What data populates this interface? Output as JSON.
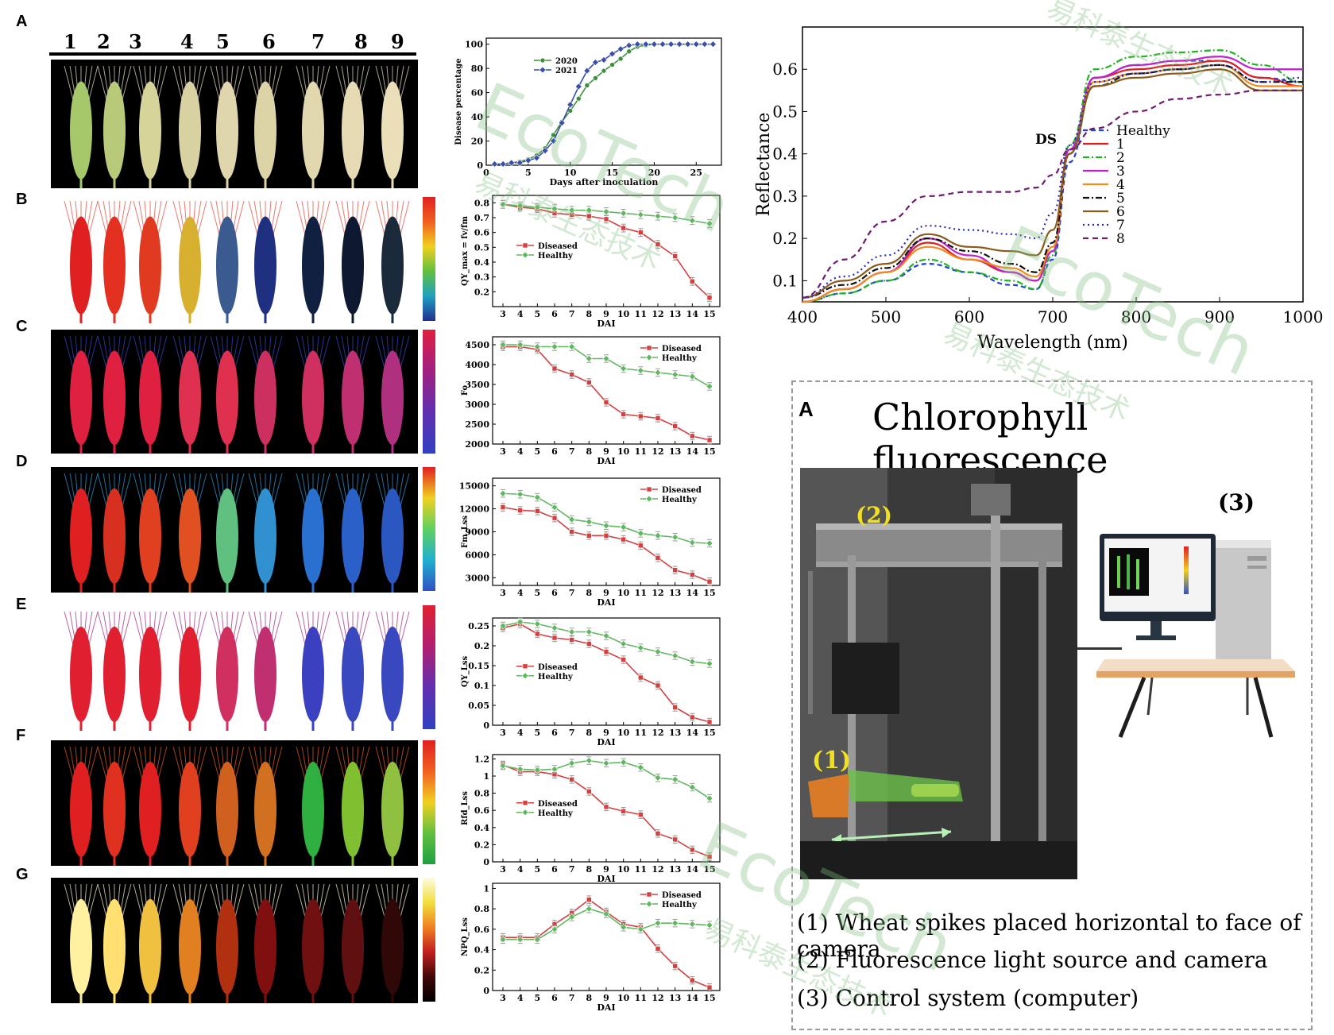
{
  "panel_labels": [
    "A",
    "B",
    "C",
    "D",
    "E",
    "F",
    "G"
  ],
  "spike_numbers": [
    "1",
    "2",
    "3",
    "4",
    "5",
    "6",
    "7",
    "8",
    "9"
  ],
  "watermark": {
    "brand": "EcoTech",
    "chinese": "易科泰生态技术"
  },
  "chart_data": [
    {
      "id": "disease-percentage",
      "type": "line",
      "xlabel": "Days after inoculation",
      "ylabel": "Disease percentage",
      "xlim": [
        0,
        28
      ],
      "ylim": [
        0,
        105
      ],
      "xticks": [
        0,
        5,
        10,
        15,
        20,
        25
      ],
      "yticks": [
        0,
        20,
        40,
        60,
        80,
        100
      ],
      "legend": "top-left",
      "series": [
        {
          "name": "2020",
          "color": "#3d8f3d",
          "marker": "circle",
          "x": [
            1,
            2,
            3,
            4,
            5,
            6,
            7,
            8,
            9,
            10,
            11,
            12,
            13,
            14,
            15,
            16,
            17,
            18,
            19,
            20,
            21,
            22,
            23,
            24,
            25,
            26,
            27
          ],
          "y": [
            1,
            1,
            2,
            3,
            5,
            8,
            14,
            25,
            36,
            45,
            55,
            66,
            72,
            78,
            83,
            88,
            94,
            98,
            99,
            100,
            100,
            100,
            100,
            100,
            100,
            100,
            100
          ]
        },
        {
          "name": "2021",
          "color": "#3a4fa8",
          "marker": "diamond",
          "x": [
            1,
            2,
            3,
            4,
            5,
            6,
            7,
            8,
            9,
            10,
            11,
            12,
            13,
            14,
            15,
            16,
            17,
            18,
            19,
            20,
            21,
            22,
            23,
            24,
            25,
            26,
            27
          ],
          "y": [
            1,
            1,
            2,
            2,
            4,
            6,
            12,
            20,
            35,
            50,
            65,
            78,
            85,
            87,
            92,
            96,
            99,
            100,
            100,
            100,
            100,
            100,
            100,
            100,
            100,
            100,
            100
          ]
        }
      ]
    },
    {
      "id": "qy-max",
      "type": "line",
      "xlabel": "DAI",
      "ylabel": "QY_max = fv/fm",
      "x": [
        3,
        4,
        5,
        6,
        7,
        8,
        9,
        10,
        11,
        12,
        13,
        14,
        15
      ],
      "ylim": [
        0.1,
        0.85
      ],
      "yticks": [
        0.2,
        0.3,
        0.4,
        0.5,
        0.6,
        0.7,
        0.8
      ],
      "legend": "middle-left",
      "series": [
        {
          "name": "Diseased",
          "color": "#d44040",
          "marker": "square",
          "y": [
            0.79,
            0.77,
            0.76,
            0.73,
            0.72,
            0.71,
            0.69,
            0.63,
            0.6,
            0.52,
            0.44,
            0.27,
            0.16
          ]
        },
        {
          "name": "Healthy",
          "color": "#5fb85f",
          "marker": "diamond",
          "y": [
            0.79,
            0.78,
            0.77,
            0.76,
            0.75,
            0.75,
            0.74,
            0.73,
            0.72,
            0.71,
            0.7,
            0.68,
            0.66
          ]
        }
      ]
    },
    {
      "id": "fo",
      "type": "line",
      "xlabel": "DAI",
      "ylabel": "Fo",
      "x": [
        3,
        4,
        5,
        6,
        7,
        8,
        9,
        10,
        11,
        12,
        13,
        14,
        15
      ],
      "ylim": [
        2000,
        4700
      ],
      "yticks": [
        2000,
        2500,
        3000,
        3500,
        4000,
        4500
      ],
      "legend": "top-right",
      "series": [
        {
          "name": "Diseased",
          "color": "#d44040",
          "marker": "square",
          "y": [
            4450,
            4450,
            4380,
            3900,
            3750,
            3550,
            3050,
            2750,
            2700,
            2650,
            2450,
            2200,
            2100
          ]
        },
        {
          "name": "Healthy",
          "color": "#5fb85f",
          "marker": "diamond",
          "y": [
            4500,
            4500,
            4450,
            4450,
            4450,
            4150,
            4150,
            3900,
            3850,
            3800,
            3750,
            3700,
            3450
          ]
        }
      ]
    },
    {
      "id": "fm-lss",
      "type": "line",
      "xlabel": "DAI",
      "ylabel": "Fm_Lss",
      "x": [
        3,
        4,
        5,
        6,
        7,
        8,
        9,
        10,
        11,
        12,
        13,
        14,
        15
      ],
      "ylim": [
        2000,
        16000
      ],
      "yticks": [
        3000,
        6000,
        9000,
        12000,
        15000
      ],
      "legend": "top-right",
      "series": [
        {
          "name": "Diseased",
          "color": "#d44040",
          "marker": "square",
          "y": [
            12200,
            11800,
            11700,
            10800,
            9000,
            8500,
            8500,
            8000,
            7200,
            5600,
            4000,
            3400,
            2500
          ]
        },
        {
          "name": "Healthy",
          "color": "#5fb85f",
          "marker": "diamond",
          "y": [
            14000,
            13900,
            13500,
            12200,
            10600,
            10300,
            9800,
            9600,
            8800,
            8500,
            8300,
            7600,
            7500
          ]
        }
      ]
    },
    {
      "id": "qy-lss",
      "type": "line",
      "xlabel": "DAI",
      "ylabel": "QY_Lss",
      "x": [
        3,
        4,
        5,
        6,
        7,
        8,
        9,
        10,
        11,
        12,
        13,
        14,
        15
      ],
      "ylim": [
        0,
        0.27
      ],
      "yticks": [
        0.0,
        0.05,
        0.1,
        0.15,
        0.2,
        0.25
      ],
      "legend": "middle-left",
      "series": [
        {
          "name": "Diseased",
          "color": "#d44040",
          "marker": "square",
          "y": [
            0.245,
            0.255,
            0.23,
            0.22,
            0.215,
            0.205,
            0.185,
            0.165,
            0.12,
            0.1,
            0.045,
            0.02,
            0.008
          ]
        },
        {
          "name": "Healthy",
          "color": "#5fb85f",
          "marker": "diamond",
          "y": [
            0.25,
            0.26,
            0.255,
            0.245,
            0.235,
            0.235,
            0.225,
            0.205,
            0.195,
            0.185,
            0.175,
            0.16,
            0.155
          ]
        }
      ]
    },
    {
      "id": "rfd-lss",
      "type": "line",
      "xlabel": "DAI",
      "ylabel": "Rfd_Lss",
      "x": [
        3,
        4,
        5,
        6,
        7,
        8,
        9,
        10,
        11,
        12,
        13,
        14,
        15
      ],
      "ylim": [
        0,
        1.25
      ],
      "yticks": [
        0.0,
        0.2,
        0.4,
        0.6,
        0.8,
        1.0,
        1.2
      ],
      "legend": "middle-left",
      "series": [
        {
          "name": "Diseased",
          "color": "#d44040",
          "marker": "square",
          "y": [
            1.13,
            1.05,
            1.05,
            1.02,
            0.96,
            0.82,
            0.64,
            0.59,
            0.55,
            0.33,
            0.26,
            0.14,
            0.06
          ]
        },
        {
          "name": "Healthy",
          "color": "#5fb85f",
          "marker": "diamond",
          "y": [
            1.12,
            1.08,
            1.07,
            1.08,
            1.15,
            1.18,
            1.15,
            1.16,
            1.1,
            0.98,
            0.96,
            0.87,
            0.74
          ]
        }
      ]
    },
    {
      "id": "npq-lss",
      "type": "line",
      "xlabel": "DAI",
      "ylabel": "NPQ_Lss",
      "x": [
        3,
        4,
        5,
        6,
        7,
        8,
        9,
        10,
        11,
        12,
        13,
        14,
        15
      ],
      "ylim": [
        0,
        1.05
      ],
      "yticks": [
        0.0,
        0.2,
        0.4,
        0.6,
        0.8,
        1.0
      ],
      "legend": "top-right",
      "series": [
        {
          "name": "Diseased",
          "color": "#d44040",
          "marker": "square",
          "y": [
            0.52,
            0.52,
            0.52,
            0.65,
            0.76,
            0.89,
            0.77,
            0.65,
            0.62,
            0.41,
            0.24,
            0.1,
            0.03
          ]
        },
        {
          "name": "Healthy",
          "color": "#5fb85f",
          "marker": "diamond",
          "y": [
            0.5,
            0.5,
            0.5,
            0.6,
            0.72,
            0.8,
            0.75,
            0.62,
            0.6,
            0.66,
            0.66,
            0.65,
            0.64
          ]
        }
      ]
    },
    {
      "id": "reflectance",
      "type": "line",
      "xlabel": "Wavelength (nm)",
      "ylabel": "Reflectance",
      "xlim": [
        400,
        1000
      ],
      "ylim": [
        0.05,
        0.7
      ],
      "xticks": [
        400,
        500,
        600,
        700,
        800,
        900,
        1000
      ],
      "yticks": [
        0.1,
        0.2,
        0.3,
        0.4,
        0.5,
        0.6
      ],
      "legend_title": "DS",
      "legend": "right",
      "x": [
        400,
        450,
        500,
        550,
        600,
        650,
        680,
        700,
        720,
        750,
        800,
        850,
        900,
        950,
        1000
      ],
      "series": [
        {
          "name": "Healthy",
          "color": "#1f3fd9",
          "dash": "6,4",
          "y": [
            0.05,
            0.07,
            0.1,
            0.14,
            0.12,
            0.09,
            0.08,
            0.15,
            0.38,
            0.58,
            0.61,
            0.62,
            0.62,
            0.58,
            0.57
          ]
        },
        {
          "name": "1",
          "color": "#e02020",
          "dash": "",
          "y": [
            0.05,
            0.08,
            0.12,
            0.19,
            0.15,
            0.12,
            0.1,
            0.17,
            0.4,
            0.58,
            0.6,
            0.61,
            0.62,
            0.58,
            0.56
          ]
        },
        {
          "name": "2",
          "color": "#21b321",
          "dash": "8,3,2,3",
          "y": [
            0.05,
            0.07,
            0.1,
            0.15,
            0.12,
            0.1,
            0.08,
            0.16,
            0.42,
            0.6,
            0.63,
            0.64,
            0.645,
            0.61,
            0.57
          ]
        },
        {
          "name": "3",
          "color": "#c020d0",
          "dash": "",
          "y": [
            0.05,
            0.08,
            0.12,
            0.2,
            0.16,
            0.12,
            0.1,
            0.17,
            0.41,
            0.58,
            0.61,
            0.62,
            0.63,
            0.6,
            0.6
          ]
        },
        {
          "name": "4",
          "color": "#f08b1f",
          "dash": "",
          "y": [
            0.05,
            0.08,
            0.12,
            0.18,
            0.15,
            0.13,
            0.11,
            0.18,
            0.4,
            0.57,
            0.59,
            0.6,
            0.61,
            0.56,
            0.56
          ]
        },
        {
          "name": "5",
          "color": "#111111",
          "dash": "8,3,2,3",
          "y": [
            0.06,
            0.09,
            0.13,
            0.2,
            0.17,
            0.14,
            0.12,
            0.19,
            0.4,
            0.56,
            0.59,
            0.6,
            0.61,
            0.57,
            0.57
          ]
        },
        {
          "name": "6",
          "color": "#8b5a1a",
          "dash": "",
          "y": [
            0.06,
            0.1,
            0.14,
            0.21,
            0.18,
            0.17,
            0.16,
            0.22,
            0.4,
            0.56,
            0.58,
            0.59,
            0.6,
            0.55,
            0.55
          ]
        },
        {
          "name": "7",
          "color": "#2a2ab8",
          "dash": "2,4",
          "y": [
            0.06,
            0.11,
            0.16,
            0.23,
            0.22,
            0.21,
            0.2,
            0.26,
            0.42,
            0.57,
            0.59,
            0.6,
            0.61,
            0.57,
            0.58
          ]
        },
        {
          "name": "8",
          "color": "#6e1b6e",
          "dash": "7,5",
          "y": [
            0.06,
            0.15,
            0.24,
            0.3,
            0.31,
            0.31,
            0.32,
            0.35,
            0.41,
            0.46,
            0.5,
            0.53,
            0.54,
            0.55,
            0.55
          ]
        }
      ]
    }
  ],
  "setup": {
    "label": "A",
    "title": "Chlorophyll fluorescence",
    "tag1": "(1)",
    "tag2": "(2)",
    "tag3": "(3)",
    "captions": [
      "(1) Wheat spikes placed horizontal to face of camera",
      "(2) Fluorescence light source and camera",
      "(3) Control system (computer)"
    ]
  }
}
